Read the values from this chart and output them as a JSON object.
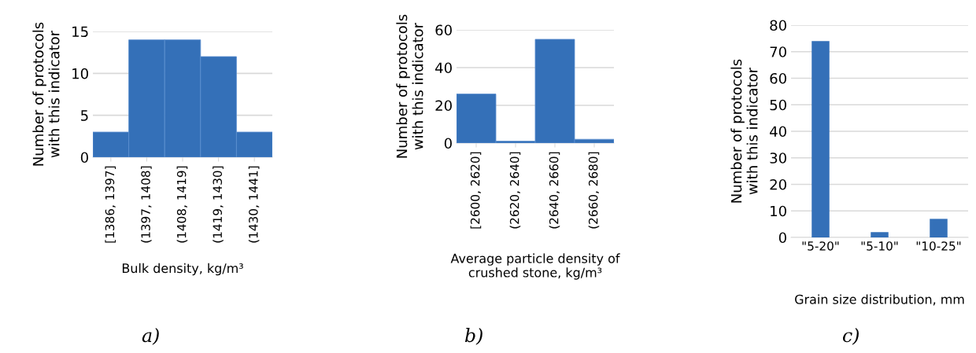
{
  "chart_data": [
    {
      "type": "bar",
      "categories": [
        "[1386, 1397]",
        "(1397, 1408]",
        "(1408, 1419]",
        "(1419, 1430]",
        "(1430, 1441]"
      ],
      "values": [
        3,
        14,
        14,
        12,
        3
      ],
      "color": "#3470b8",
      "ylim": [
        0,
        15
      ],
      "yticks": [
        0,
        5,
        10,
        15
      ],
      "grid": "y",
      "xlabel": "Bulk density, kg/m³",
      "ylabel": "Number of protocols\nwith this indicator",
      "annotations": [
        "a)"
      ]
    },
    {
      "type": "bar",
      "categories": [
        "[2600, 2620]",
        "(2620, 2640]",
        "(2640, 2660]",
        "(2660, 2680]"
      ],
      "values": [
        26,
        1,
        55,
        2
      ],
      "color": "#3470b8",
      "ylim": [
        0,
        60
      ],
      "yticks": [
        0,
        20,
        40,
        60
      ],
      "grid": "y",
      "xlabel": "Average particle density of\ncrushed stone, kg/m³",
      "ylabel": "Number of protocols\nwith this indicator",
      "annotations": [
        "b)"
      ]
    },
    {
      "type": "bar",
      "categories": [
        "\"5-20\"",
        "\"5-10\"",
        "\"10-25\""
      ],
      "values": [
        74,
        2,
        7
      ],
      "color": "#3470b8",
      "ylim": [
        0,
        80
      ],
      "yticks": [
        0,
        10,
        20,
        30,
        40,
        50,
        60,
        70,
        80
      ],
      "grid": "y",
      "xlabel": "Grain size distribution, mm",
      "ylabel": "Number of protocols\nwith this indicator",
      "annotations": [
        "c)"
      ]
    }
  ]
}
